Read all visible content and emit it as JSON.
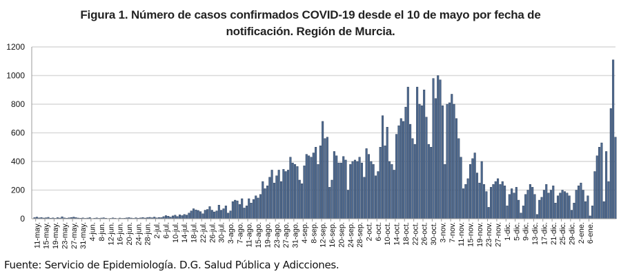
{
  "chart_data": {
    "type": "bar",
    "title_line1": "Figura 1. Número de casos confirmados COVID-19 desde el 10 de mayo por fecha de",
    "title_line2": "notificación. Región de Murcia.",
    "xlabel": "",
    "ylabel": "",
    "ylim": [
      0,
      1200
    ],
    "yticks": [
      "0",
      "200",
      "400",
      "600",
      "800",
      "1000",
      "1200"
    ],
    "ytick_values": [
      0,
      200,
      400,
      600,
      800,
      1000,
      1200
    ],
    "grid": true,
    "legend": "none",
    "bar_color": "#4f6a8f",
    "bar_edge_color": "#1c2e4a",
    "start_date_label": "10-may",
    "xtick_labels": [
      "11-may.",
      "15-may.",
      "19-may.",
      "23-may.",
      "27-may.",
      "31-may.",
      "4-jun.",
      "8-jun.",
      "12-jun.",
      "16-jun.",
      "20-jun.",
      "24-jun.",
      "28-jun.",
      "2-jul.",
      "6-jul.",
      "10-jul.",
      "14-jul.",
      "18-jul.",
      "22-jul.",
      "26-jul.",
      "30-jul.",
      "3-ago.",
      "7-ago.",
      "11-ago.",
      "15-ago.",
      "19-ago.",
      "23-ago.",
      "27-ago.",
      "31-ago.",
      "4-sep.",
      "8-sep.",
      "12-sep.",
      "16-sep.",
      "20-sep.",
      "24-sep.",
      "28-sep.",
      "2-oct.",
      "6-oct.",
      "10-oct.",
      "14-oct.",
      "18-oct.",
      "22-oct.",
      "26-oct.",
      "30-oct.",
      "3-nov.",
      "7-nov.",
      "11-nov.",
      "15-nov.",
      "19-nov.",
      "23-nov.",
      "27-nov.",
      "1-dic.",
      "5-dic.",
      "9-dic.",
      "13-dic.",
      "17-dic.",
      "21-dic.",
      "25-dic.",
      "29-dic.",
      "2-ene.",
      "6-ene."
    ],
    "values": [
      8,
      12,
      6,
      9,
      5,
      7,
      10,
      4,
      6,
      3,
      8,
      5,
      14,
      6,
      4,
      7,
      9,
      12,
      8,
      5,
      4,
      6,
      3,
      5,
      8,
      2,
      4,
      6,
      3,
      5,
      7,
      4,
      2,
      3,
      6,
      4,
      2,
      5,
      3,
      4,
      6,
      8,
      5,
      3,
      7,
      4,
      6,
      9,
      5,
      8,
      10,
      7,
      12,
      6,
      9,
      8,
      15,
      22,
      18,
      12,
      20,
      25,
      16,
      28,
      22,
      30,
      26,
      40,
      55,
      70,
      62,
      58,
      50,
      35,
      60,
      65,
      85,
      60,
      48,
      55,
      95,
      60,
      70,
      90,
      40,
      55,
      120,
      130,
      125,
      100,
      140,
      75,
      90,
      140,
      110,
      135,
      160,
      145,
      170,
      260,
      210,
      230,
      290,
      340,
      250,
      300,
      340,
      260,
      345,
      330,
      340,
      430,
      390,
      380,
      365,
      270,
      245,
      370,
      450,
      440,
      430,
      460,
      500,
      380,
      510,
      680,
      560,
      570,
      220,
      270,
      470,
      440,
      390,
      390,
      435,
      410,
      200,
      380,
      400,
      410,
      400,
      430,
      390,
      290,
      490,
      450,
      400,
      380,
      300,
      330,
      500,
      720,
      510,
      640,
      400,
      380,
      340,
      590,
      650,
      700,
      680,
      780,
      920,
      660,
      560,
      520,
      920,
      800,
      790,
      900,
      710,
      520,
      500,
      980,
      840,
      1000,
      970,
      790,
      380,
      800,
      810,
      870,
      800,
      700,
      560,
      430,
      210,
      240,
      280,
      380,
      420,
      460,
      320,
      250,
      400,
      240,
      190,
      80,
      220,
      240,
      260,
      280,
      240,
      260,
      230,
      90,
      170,
      210,
      180,
      220,
      130,
      40,
      90,
      170,
      200,
      240,
      220,
      170,
      30,
      130,
      150,
      200,
      240,
      180,
      200,
      230,
      110,
      160,
      180,
      200,
      190,
      180,
      160,
      60,
      110,
      200,
      230,
      250,
      200,
      120,
      160,
      20,
      90,
      330,
      440,
      500,
      530,
      120,
      470,
      260,
      770,
      1110,
      570
    ]
  },
  "footer": {
    "source": "Fuente: Servicio de Epidemiología. D.G. Salud Pública y Adicciones."
  }
}
